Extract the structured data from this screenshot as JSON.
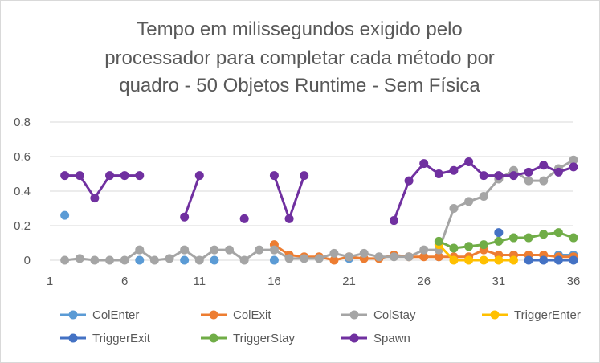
{
  "chart_data": {
    "type": "line",
    "title_lines": [
      "Tempo em milissegundos exigido pelo",
      "processador para completar cada método por",
      "quadro - 50 Objetos Runtime - Sem Física"
    ],
    "xlabel": "",
    "ylabel": "",
    "x": [
      1,
      2,
      3,
      4,
      5,
      6,
      7,
      8,
      9,
      10,
      11,
      12,
      13,
      14,
      15,
      16,
      17,
      18,
      19,
      20,
      21,
      22,
      23,
      24,
      25,
      26,
      27,
      28,
      29,
      30,
      31,
      32,
      33,
      34,
      35,
      36
    ],
    "x_tick_labels": [
      "1",
      "6",
      "11",
      "16",
      "21",
      "26",
      "31",
      "36"
    ],
    "x_tick_values": [
      1,
      6,
      11,
      16,
      21,
      26,
      31,
      36
    ],
    "y_tick_labels": [
      "0",
      "0.2",
      "0.4",
      "0.6",
      "0.8"
    ],
    "y_tick_values": [
      0,
      0.2,
      0.4,
      0.6,
      0.8
    ],
    "ylim": [
      0,
      0.8
    ],
    "xlim": [
      1,
      36
    ],
    "grid": true,
    "legend_position": "bottom",
    "series": [
      {
        "name": "ColEnter",
        "color": "#5B9BD5",
        "values": [
          null,
          0.26,
          null,
          null,
          null,
          null,
          0,
          null,
          null,
          0,
          null,
          0,
          null,
          null,
          null,
          0,
          null,
          null,
          null,
          null,
          0.01,
          null,
          null,
          null,
          null,
          null,
          0.02,
          null,
          null,
          null,
          null,
          0.03,
          null,
          null,
          0.03,
          0.03
        ]
      },
      {
        "name": "ColExit",
        "color": "#ED7D31",
        "values": [
          null,
          null,
          null,
          null,
          null,
          null,
          null,
          null,
          null,
          null,
          null,
          null,
          null,
          null,
          null,
          0.09,
          0.03,
          0.02,
          0.02,
          0,
          0.02,
          0.01,
          0.01,
          0.03,
          0.02,
          0.02,
          0.02,
          0.02,
          0.02,
          0.06,
          0.03,
          0.03,
          0.03,
          0.03,
          0.02,
          0.02
        ]
      },
      {
        "name": "ColStay",
        "color": "#A5A5A5",
        "values": [
          null,
          0,
          0.01,
          0,
          0,
          0,
          0.06,
          0,
          0.01,
          0.06,
          0,
          0.06,
          0.06,
          0,
          0.06,
          0.06,
          0.01,
          0.01,
          0.01,
          0.04,
          0.02,
          0.04,
          0.02,
          0.02,
          0.02,
          0.06,
          0.06,
          0.3,
          0.34,
          0.37,
          0.47,
          0.52,
          0.46,
          0.46,
          0.53,
          0.58
        ]
      },
      {
        "name": "TriggerEnter",
        "color": "#FFC000",
        "values": [
          null,
          null,
          null,
          null,
          null,
          null,
          null,
          null,
          null,
          null,
          null,
          null,
          null,
          null,
          null,
          null,
          null,
          null,
          null,
          null,
          null,
          null,
          null,
          null,
          null,
          null,
          0.09,
          0,
          0,
          0,
          0,
          0,
          null,
          null,
          null,
          null
        ]
      },
      {
        "name": "TriggerExit",
        "color": "#4472C4",
        "values": [
          null,
          null,
          null,
          null,
          null,
          null,
          null,
          null,
          null,
          null,
          null,
          null,
          null,
          null,
          null,
          null,
          null,
          null,
          null,
          null,
          null,
          null,
          null,
          null,
          null,
          null,
          null,
          null,
          null,
          null,
          0.16,
          null,
          0,
          0,
          0,
          0
        ]
      },
      {
        "name": "TriggerStay",
        "color": "#70AD47",
        "values": [
          null,
          null,
          null,
          null,
          null,
          null,
          null,
          null,
          null,
          null,
          null,
          null,
          null,
          null,
          null,
          null,
          null,
          null,
          null,
          null,
          null,
          null,
          null,
          null,
          null,
          null,
          0.11,
          0.07,
          0.08,
          0.09,
          0.11,
          0.13,
          0.13,
          0.15,
          0.16,
          0.13
        ]
      },
      {
        "name": "Spawn",
        "color": "#7030A0",
        "values": [
          null,
          0.49,
          0.49,
          0.36,
          0.49,
          0.49,
          0.49,
          null,
          null,
          0.25,
          0.49,
          null,
          null,
          0.24,
          null,
          0.49,
          0.24,
          0.49,
          null,
          null,
          null,
          null,
          null,
          0.23,
          0.46,
          0.56,
          0.5,
          0.52,
          0.57,
          0.49,
          0.49,
          0.49,
          0.51,
          0.55,
          0.51,
          0.54
        ]
      }
    ]
  }
}
